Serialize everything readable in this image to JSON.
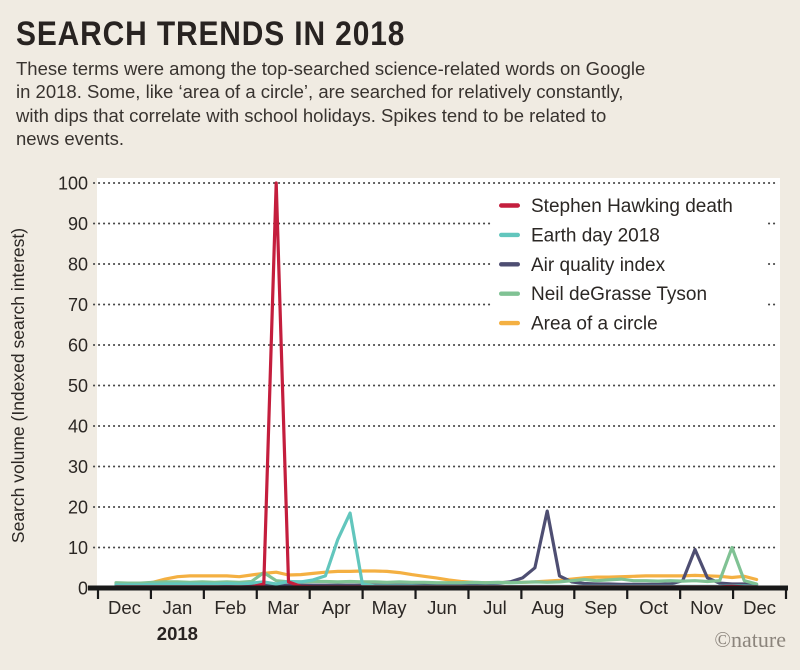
{
  "header": {
    "title": "SEARCH TRENDS IN 2018",
    "subtitle_lines": [
      "These terms were among the top-searched science-related words on Google",
      "in 2018. Some, like ‘area of a circle’, are searched for relatively constantly,",
      "with dips that correlate with school holidays. Spikes tend to be related to",
      "news events."
    ]
  },
  "footer": {
    "credit": "©nature"
  },
  "colors": {
    "background": "#f0ebe2",
    "plot_background": "#ffffff",
    "axis": "#191919",
    "grid": "#474747",
    "tick_text": "#2b2724",
    "credit_text": "#8b847c"
  },
  "chart_data": {
    "type": "line",
    "title": "SEARCH TRENDS IN 2018",
    "ylabel": "Search volume (Indexed search interest)",
    "ylim": [
      0,
      100
    ],
    "yticks": [
      0,
      10,
      20,
      30,
      40,
      50,
      60,
      70,
      80,
      90,
      100
    ],
    "grid": "dotted horizontal gridlines at each ytick",
    "legend_position": "top-right inside plot",
    "x_unit": "weekly points, week 0 = early Dec 2017 through week 52 = early Dec 2018",
    "month_labels": [
      "Dec",
      "Jan",
      "Feb",
      "Mar",
      "Apr",
      "May",
      "Jun",
      "Jul",
      "Aug",
      "Sep",
      "Oct",
      "Nov",
      "Dec"
    ],
    "year_label": "2018",
    "draw_order": [
      4,
      2,
      3,
      1,
      0
    ],
    "series": [
      {
        "name": "Stephen Hawking death",
        "color": "#c41e3d",
        "peak_note": "spike to 100 in week of 11 Mar 2018",
        "values": [
          0.3,
          0.3,
          0.3,
          0.3,
          0.3,
          0.3,
          0.3,
          0.3,
          0.3,
          0.3,
          0.3,
          0.3,
          1,
          100,
          1.5,
          0.4,
          0.3,
          0.3,
          0.3,
          0.3,
          0.3,
          0.3,
          0.3,
          0.3,
          0.3,
          0.3,
          0.3,
          0.3,
          0.3,
          0.3,
          0.3,
          0.3,
          0.3,
          0.3,
          0.3,
          0.3,
          0.3,
          0.3,
          0.3,
          0.3,
          0.3,
          0.3,
          0.3,
          0.3,
          0.3,
          0.3,
          0.3,
          0.3,
          0.3,
          0.3,
          0.4,
          0.3,
          0.3
        ]
      },
      {
        "name": "Earth day 2018",
        "color": "#62c6bd",
        "peak_note": "spike to ~18.5 in week of 22 Apr 2018",
        "values": [
          0.8,
          0.8,
          0.8,
          0.9,
          1,
          1,
          1,
          1,
          1,
          1.1,
          1,
          1.2,
          1.5,
          1,
          1.6,
          1.5,
          2,
          3,
          12,
          18.5,
          1,
          0.5,
          0.5,
          0.5,
          0.5,
          0.4,
          0.4,
          0.4,
          0.4,
          0.4,
          0.4,
          0.4,
          0.4,
          0.4,
          0.4,
          0.4,
          0.4,
          0.4,
          0.4,
          0.4,
          0.4,
          0.4,
          0.4,
          0.4,
          0.4,
          0.4,
          0.4,
          0.4,
          0.4,
          0.4,
          0.5,
          0.5,
          0.4
        ]
      },
      {
        "name": "Air quality index",
        "color": "#4e4e72",
        "peak_note": "spike to ~19 mid-Aug 2018, second spike ~9.5 early Nov 2018",
        "values": [
          0.6,
          0.6,
          0.6,
          0.6,
          0.6,
          0.6,
          0.6,
          0.6,
          0.6,
          0.6,
          0.6,
          0.6,
          0.7,
          0.7,
          0.7,
          0.7,
          0.7,
          0.7,
          0.7,
          0.7,
          0.7,
          0.7,
          0.7,
          0.7,
          0.7,
          0.8,
          0.8,
          0.8,
          0.8,
          1,
          1.1,
          1.2,
          1.5,
          2.5,
          5,
          19,
          3,
          1.5,
          1.1,
          1,
          1,
          0.9,
          0.9,
          0.9,
          0.9,
          1,
          1.8,
          9.5,
          2.5,
          1.2,
          1,
          1,
          0.8
        ]
      },
      {
        "name": "Neil deGrasse Tyson",
        "color": "#80c294",
        "peak_note": "small bump ~3.8 early Mar, spike to ~10 in week of 25 Nov 2018",
        "values": [
          1.3,
          1.2,
          1.2,
          1.4,
          1.5,
          1.5,
          1.4,
          1.5,
          1.4,
          1.5,
          1.4,
          1.6,
          3.8,
          1.8,
          1.5,
          1.5,
          1.6,
          1.6,
          1.5,
          1.6,
          1.5,
          1.5,
          1.4,
          1.5,
          1.4,
          1.4,
          1.3,
          1.3,
          1.3,
          1.4,
          1.3,
          1.4,
          1.3,
          1.4,
          1.5,
          1.4,
          1.5,
          1.8,
          2.1,
          1.8,
          2,
          2.2,
          1.8,
          1.8,
          1.7,
          1.8,
          1.7,
          1.8,
          1.6,
          1.8,
          10,
          1.8,
          1
        ]
      },
      {
        "name": "Area of a circle",
        "color": "#f4b042",
        "peak_note": "steady ~3-4 during school terms, dips in summer and holidays",
        "values": [
          1,
          1.2,
          1,
          1.4,
          2.2,
          2.8,
          3,
          3,
          3,
          3,
          2.8,
          3.2,
          3.6,
          3.9,
          3.2,
          3.3,
          3.6,
          3.9,
          4.1,
          4.1,
          4.2,
          4.2,
          4.1,
          3.8,
          3.3,
          2.9,
          2.5,
          2,
          1.6,
          1.4,
          1.3,
          1.3,
          1.4,
          1.4,
          1.5,
          1.7,
          1.9,
          2.2,
          2.5,
          2.7,
          2.7,
          2.8,
          2.9,
          3,
          3,
          3,
          3,
          3.1,
          3,
          2.9,
          2.6,
          2.9,
          2.1
        ]
      }
    ]
  }
}
